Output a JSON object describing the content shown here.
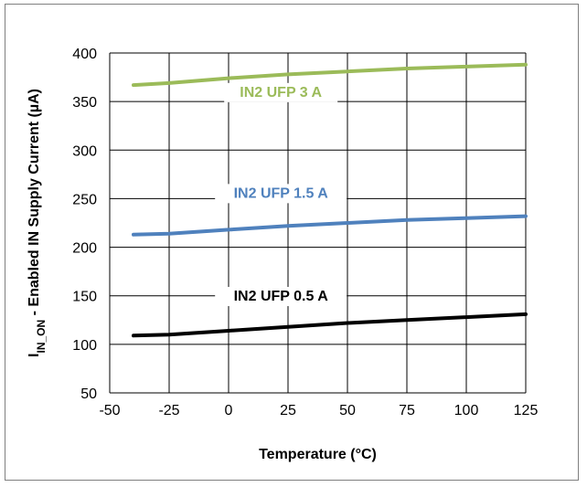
{
  "chart_data": {
    "type": "line",
    "title": "",
    "xlabel": "Temperature (°C)",
    "ylabel_parts": {
      "main": "I",
      "sub": "IN_ON",
      "rest": " - Enabled IN Supply Current (µA)"
    },
    "xlim": [
      -50,
      125
    ],
    "ylim": [
      50,
      400
    ],
    "x_ticks": [
      -50,
      -25,
      0,
      25,
      50,
      75,
      100,
      125
    ],
    "y_ticks": [
      50,
      100,
      150,
      200,
      250,
      300,
      350,
      400
    ],
    "grid": true,
    "legend": "inline labels",
    "x": [
      -40,
      -25,
      0,
      25,
      50,
      75,
      100,
      125
    ],
    "series": [
      {
        "name": "IN2 UFP 3 A",
        "color": "#9bbb59",
        "values": [
          367,
          369,
          374,
          378,
          381,
          384,
          386,
          388
        ],
        "label_at": [
          22,
          355
        ]
      },
      {
        "name": "IN2 UFP 1.5 A",
        "color": "#4f81bd",
        "values": [
          213,
          214,
          218,
          222,
          225,
          228,
          230,
          232
        ],
        "label_at": [
          22,
          251
        ]
      },
      {
        "name": "IN2 UFP 0.5 A",
        "color": "#000000",
        "values": [
          109,
          110,
          114,
          118,
          122,
          125,
          128,
          131
        ],
        "label_at": [
          22,
          145
        ]
      }
    ]
  }
}
